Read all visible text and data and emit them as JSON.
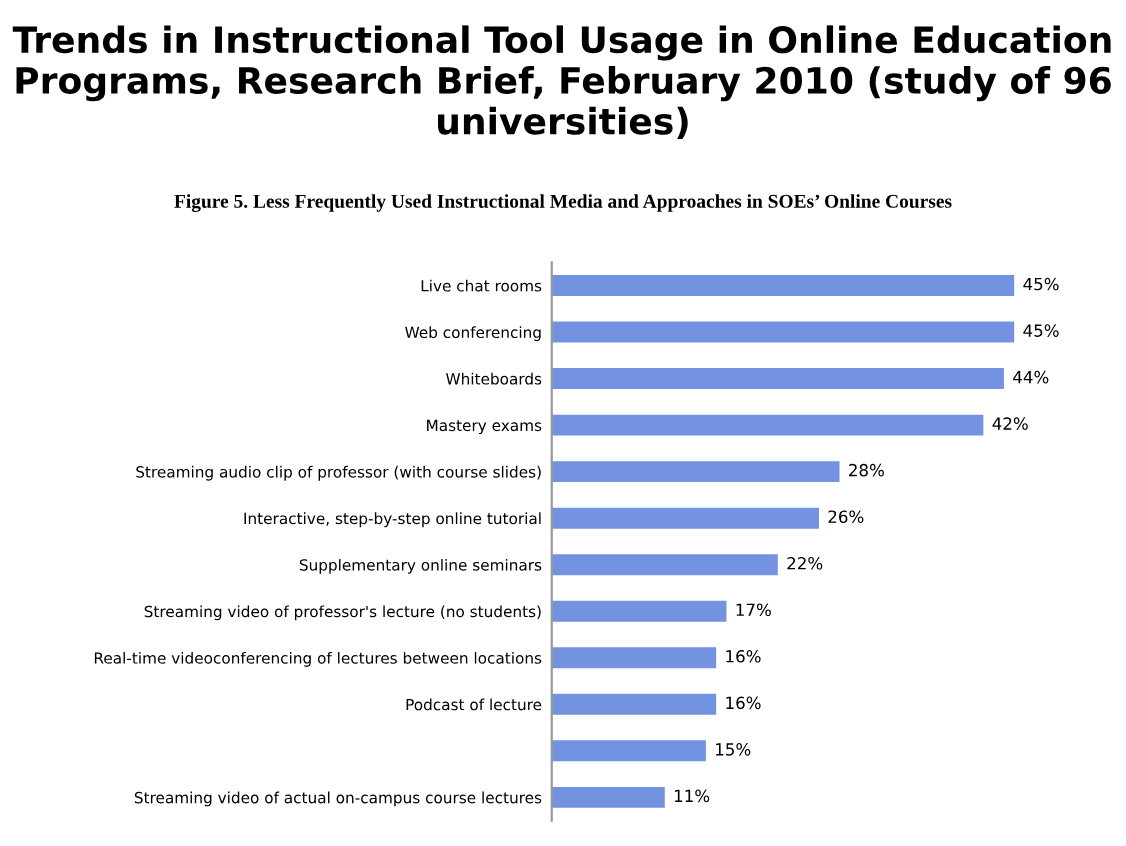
{
  "chart_data": {
    "type": "bar",
    "orientation": "horizontal",
    "title": "Trends in Instructional Tool Usage in Online Education Programs, Research Brief, February 2010 (study of 96 universities)",
    "subtitle": "Figure 5. Less Frequently Used Instructional Media and Approaches in SOEs’ Online Courses",
    "categories": [
      "Live chat rooms",
      "Web conferencing",
      "Whiteboards",
      "Mastery exams",
      "Streaming audio clip of professor (with course slides)",
      "Interactive, step-by-step online tutorial",
      "Supplementary online seminars",
      "Streaming video of professor's lecture (no students)",
      "Real-time videoconferencing of lectures between locations",
      "Podcast of lecture",
      null,
      "Streaming video of actual on-campus course lectures"
    ],
    "values": [
      45,
      45,
      44,
      42,
      28,
      26,
      22,
      17,
      16,
      16,
      15,
      11
    ],
    "value_labels": [
      "45%",
      "45%",
      "44%",
      "42%",
      "28%",
      "26%",
      "22%",
      "17%",
      "16%",
      "16%",
      "15%",
      "11%"
    ],
    "color": "#7393e0",
    "grid": false,
    "legend": false
  }
}
